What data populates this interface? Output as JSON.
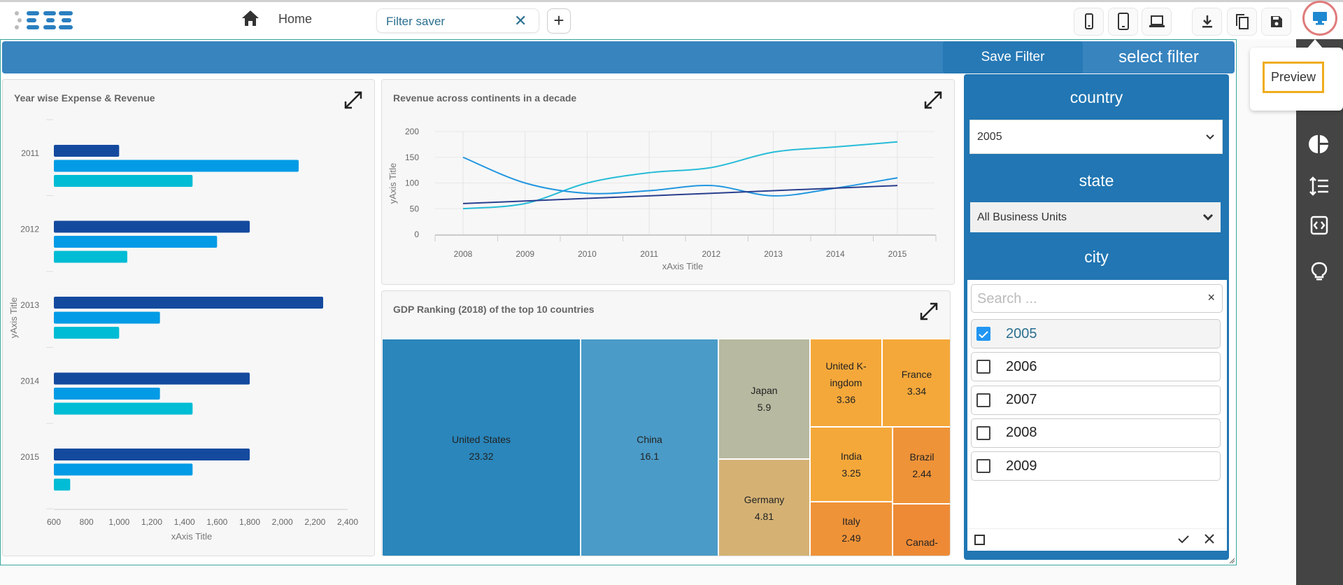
{
  "header": {
    "logo_text": "BDB",
    "home_label": "Home",
    "tab_label": "Filter saver",
    "add_tab_label": "+",
    "device_buttons": [
      "mobile-icon",
      "tablet-icon",
      "laptop-icon"
    ],
    "action_buttons": [
      "download-icon",
      "copy-icon",
      "save-icon",
      "monitor-icon"
    ],
    "tooltip": "Preview"
  },
  "banner": {
    "save_filter": "Save Filter",
    "select_filter": "select filter"
  },
  "bar_panel": {
    "title": "Year wise Expense & Revenue"
  },
  "line_panel": {
    "title": "Revenue across continents in a decade"
  },
  "treemap_panel": {
    "title": "GDP Ranking (2018) of the top 10 countries"
  },
  "chart_data": [
    {
      "type": "bar",
      "orientation": "horizontal",
      "title": "Year wise Expense & Revenue",
      "xlabel": "xAxis Title",
      "ylabel": "yAxis Title",
      "categories": [
        "2011",
        "2012",
        "2013",
        "2014",
        "2015"
      ],
      "xlim": [
        600,
        2400
      ],
      "xticks": [
        "600",
        "800",
        "1,000",
        "1,200",
        "1,400",
        "1,600",
        "1,800",
        "2,000",
        "2,200",
        "2,400"
      ],
      "series": [
        {
          "color": "#144a9e",
          "values": [
            1000,
            1800,
            2250,
            1800,
            1800
          ]
        },
        {
          "color": "#039be5",
          "values": [
            2100,
            1600,
            1250,
            1250,
            1450
          ]
        },
        {
          "color": "#00bcd4",
          "values": [
            1450,
            1050,
            1000,
            1450,
            700
          ]
        }
      ]
    },
    {
      "type": "line",
      "title": "Revenue across continents in a decade",
      "xlabel": "xAxis Title",
      "ylabel": "yAxis Title",
      "x": [
        "2008",
        "2009",
        "2010",
        "2011",
        "2012",
        "2013",
        "2014",
        "2015"
      ],
      "ylim": [
        0,
        200
      ],
      "yticks": [
        "0",
        "50",
        "100",
        "150",
        "200"
      ],
      "grid": true,
      "series": [
        {
          "color": "#26bcd7",
          "values": [
            50,
            60,
            100,
            120,
            130,
            160,
            170,
            180
          ]
        },
        {
          "color": "#2196e0",
          "values": [
            150,
            100,
            80,
            85,
            95,
            75,
            90,
            110
          ]
        },
        {
          "color": "#2a3f8f",
          "values": [
            60,
            65,
            70,
            75,
            80,
            85,
            90,
            95
          ]
        }
      ]
    },
    {
      "type": "treemap",
      "title": "GDP Ranking (2018) of the top 10 countries",
      "items": [
        {
          "label": "United States",
          "value": "23.32",
          "color": "#2a86bb"
        },
        {
          "label": "China",
          "value": "16.1",
          "color": "#4a9bc8"
        },
        {
          "label": "Japan",
          "value": "5.9",
          "color": "#b7b9a0"
        },
        {
          "label": "Germany",
          "value": "4.81",
          "color": "#d5b274"
        },
        {
          "label": "United K-ingdom",
          "value": "3.36",
          "color": "#f5a83a"
        },
        {
          "label": "France",
          "value": "3.34",
          "color": "#f5a83a"
        },
        {
          "label": "India",
          "value": "3.25",
          "color": "#f5a83a"
        },
        {
          "label": "Brazil",
          "value": "2.44",
          "color": "#ef9338"
        },
        {
          "label": "Italy",
          "value": "2.49",
          "color": "#ef9338"
        },
        {
          "label": "Canad-",
          "value": "",
          "color": "#ee8a35"
        }
      ]
    }
  ],
  "filter": {
    "country_label": "country",
    "country_value": "2005",
    "state_label": "state",
    "state_value": "All Business Units",
    "city_label": "city",
    "search_placeholder": "Search ...",
    "clear": "×",
    "cities": [
      {
        "label": "2005",
        "checked": true
      },
      {
        "label": "2006",
        "checked": false
      },
      {
        "label": "2007",
        "checked": false
      },
      {
        "label": "2008",
        "checked": false
      },
      {
        "label": "2009",
        "checked": false
      }
    ]
  },
  "sidebar": {
    "icons": [
      "pie-chart-icon",
      "line-height-icon",
      "code-icon",
      "lightbulb-icon"
    ]
  }
}
